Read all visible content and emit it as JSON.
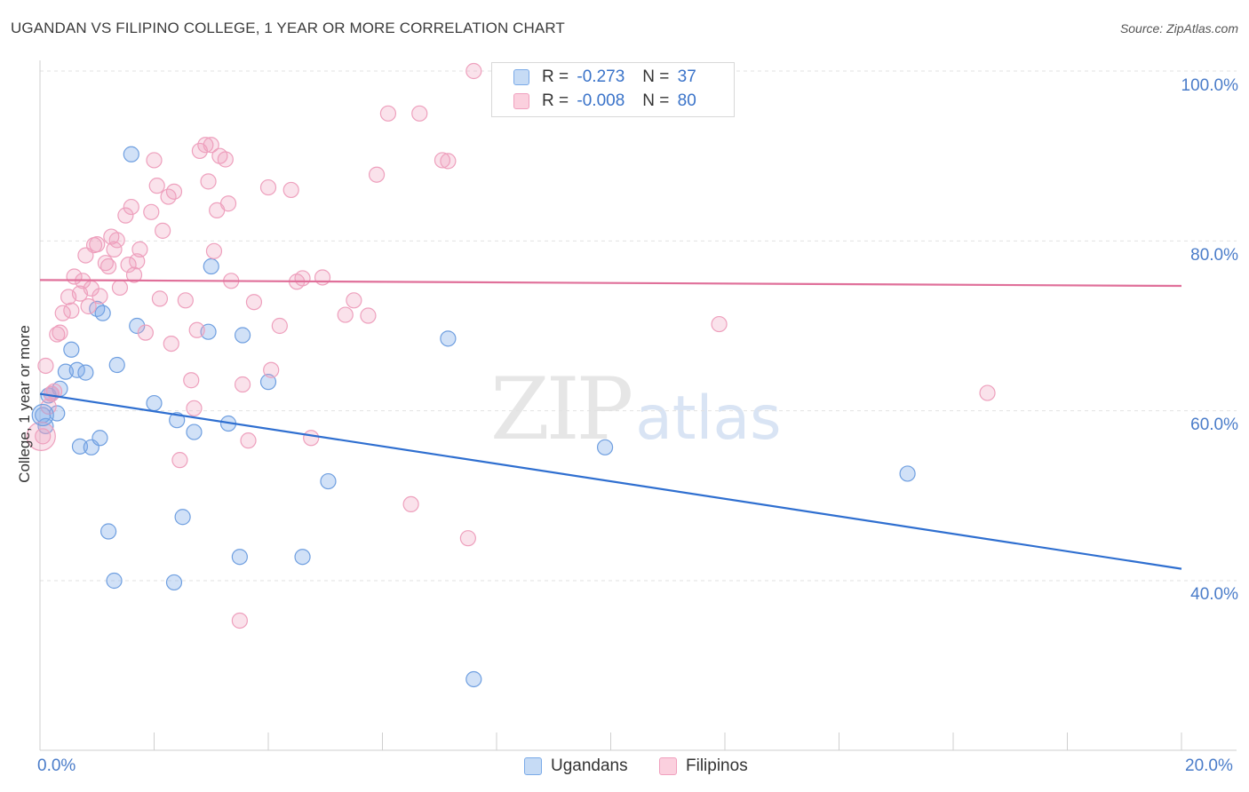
{
  "title": "UGANDAN VS FILIPINO COLLEGE, 1 YEAR OR MORE CORRELATION CHART",
  "source": "Source: ZipAtlas.com",
  "watermark": {
    "zip": "ZIP",
    "atlas": "atlas"
  },
  "legend": {
    "rows": [
      {
        "r_label": "R =",
        "r_value": "-0.273",
        "n_label": "N =",
        "n_value": "37"
      },
      {
        "r_label": "R =",
        "r_value": "-0.008",
        "n_label": "N =",
        "n_value": "80"
      }
    ]
  },
  "chart_data": {
    "type": "scatter",
    "xlabel": "",
    "ylabel": "College, 1 year or more",
    "xlim": [
      0,
      20
    ],
    "ylim": [
      20,
      102
    ],
    "x_ticks": [
      {
        "value": 0,
        "label": "0.0%"
      },
      {
        "value": 20,
        "label": "20.0%"
      }
    ],
    "y_ticks": [
      {
        "value": 40,
        "label": "40.0%"
      },
      {
        "value": 60,
        "label": "60.0%"
      },
      {
        "value": 80,
        "label": "80.0%"
      },
      {
        "value": 100,
        "label": "100.0%"
      }
    ],
    "colors": {
      "ugandans": "#7aaae8",
      "filipinos": "#f0a0be",
      "ugandans_line": "#2f6fd0",
      "filipinos_line": "#e0709a"
    },
    "series": [
      {
        "name": "Ugandans",
        "r": -0.273,
        "n": 37,
        "trend": [
          [
            0,
            62.0
          ],
          [
            20,
            41.4
          ]
        ],
        "points": [
          [
            0.05,
            59.5
          ],
          [
            0.15,
            61.8
          ],
          [
            0.3,
            59.7
          ],
          [
            0.35,
            62.6
          ],
          [
            0.45,
            64.6
          ],
          [
            0.55,
            67.2
          ],
          [
            0.65,
            64.8
          ],
          [
            0.7,
            55.8
          ],
          [
            0.8,
            64.5
          ],
          [
            0.9,
            55.7
          ],
          [
            1.05,
            56.8
          ],
          [
            1.0,
            72.0
          ],
          [
            1.1,
            71.5
          ],
          [
            1.2,
            45.8
          ],
          [
            1.3,
            40.0
          ],
          [
            1.35,
            65.4
          ],
          [
            1.6,
            90.2
          ],
          [
            1.7,
            70.0
          ],
          [
            2.0,
            60.9
          ],
          [
            2.35,
            39.8
          ],
          [
            2.4,
            58.9
          ],
          [
            2.5,
            47.5
          ],
          [
            2.7,
            57.5
          ],
          [
            2.95,
            69.3
          ],
          [
            3.0,
            77.0
          ],
          [
            3.3,
            58.5
          ],
          [
            3.5,
            42.8
          ],
          [
            3.55,
            68.9
          ],
          [
            4.0,
            63.4
          ],
          [
            4.6,
            42.8
          ],
          [
            5.05,
            51.7
          ],
          [
            7.15,
            68.5
          ],
          [
            7.6,
            28.4
          ],
          [
            9.9,
            55.7
          ],
          [
            15.2,
            52.6
          ],
          [
            0.1,
            58.2
          ],
          [
            0.2,
            62.0
          ]
        ]
      },
      {
        "name": "Filipinos",
        "r": -0.008,
        "n": 80,
        "trend": [
          [
            0,
            75.4
          ],
          [
            20,
            74.7
          ]
        ],
        "points": [
          [
            0.05,
            57.0
          ],
          [
            0.1,
            65.3
          ],
          [
            0.2,
            62.0
          ],
          [
            0.3,
            69.0
          ],
          [
            0.4,
            71.5
          ],
          [
            0.5,
            73.4
          ],
          [
            0.55,
            71.8
          ],
          [
            0.6,
            75.8
          ],
          [
            0.7,
            73.8
          ],
          [
            0.75,
            75.3
          ],
          [
            0.8,
            78.3
          ],
          [
            0.85,
            72.3
          ],
          [
            0.9,
            74.4
          ],
          [
            0.95,
            79.5
          ],
          [
            1.0,
            79.6
          ],
          [
            1.05,
            73.5
          ],
          [
            1.15,
            77.4
          ],
          [
            1.2,
            77.0
          ],
          [
            1.25,
            80.5
          ],
          [
            1.3,
            79.0
          ],
          [
            1.35,
            80.1
          ],
          [
            1.4,
            74.5
          ],
          [
            1.5,
            83.0
          ],
          [
            1.55,
            77.2
          ],
          [
            1.6,
            84.0
          ],
          [
            1.65,
            76.0
          ],
          [
            1.7,
            77.6
          ],
          [
            1.75,
            79.0
          ],
          [
            1.85,
            69.2
          ],
          [
            1.95,
            83.4
          ],
          [
            2.0,
            89.5
          ],
          [
            2.05,
            86.5
          ],
          [
            2.1,
            73.2
          ],
          [
            2.15,
            81.2
          ],
          [
            2.25,
            85.2
          ],
          [
            2.3,
            67.9
          ],
          [
            2.35,
            85.8
          ],
          [
            2.45,
            54.2
          ],
          [
            2.55,
            73.0
          ],
          [
            2.65,
            63.6
          ],
          [
            2.7,
            60.3
          ],
          [
            2.75,
            69.5
          ],
          [
            2.8,
            90.6
          ],
          [
            2.9,
            91.3
          ],
          [
            2.95,
            87.0
          ],
          [
            3.0,
            91.3
          ],
          [
            3.05,
            78.8
          ],
          [
            3.1,
            83.6
          ],
          [
            3.15,
            90.0
          ],
          [
            3.25,
            89.6
          ],
          [
            3.3,
            84.4
          ],
          [
            3.35,
            75.3
          ],
          [
            3.5,
            35.3
          ],
          [
            3.55,
            63.1
          ],
          [
            3.65,
            56.5
          ],
          [
            3.75,
            72.8
          ],
          [
            4.0,
            86.3
          ],
          [
            4.05,
            64.8
          ],
          [
            4.2,
            70.0
          ],
          [
            4.4,
            86.0
          ],
          [
            4.5,
            75.2
          ],
          [
            4.6,
            75.6
          ],
          [
            4.75,
            56.8
          ],
          [
            4.95,
            75.7
          ],
          [
            5.35,
            71.3
          ],
          [
            5.5,
            73.0
          ],
          [
            5.75,
            71.2
          ],
          [
            5.9,
            87.8
          ],
          [
            6.1,
            95.0
          ],
          [
            6.5,
            49.0
          ],
          [
            6.65,
            95.0
          ],
          [
            7.05,
            89.5
          ],
          [
            7.15,
            89.4
          ],
          [
            7.5,
            45.0
          ],
          [
            7.6,
            100.0
          ],
          [
            11.9,
            70.2
          ],
          [
            16.6,
            62.1
          ],
          [
            0.15,
            60.5
          ],
          [
            0.25,
            62.3
          ],
          [
            0.35,
            69.2
          ]
        ]
      }
    ]
  },
  "bottom_legend": [
    {
      "label": "Ugandans"
    },
    {
      "label": "Filipinos"
    }
  ]
}
